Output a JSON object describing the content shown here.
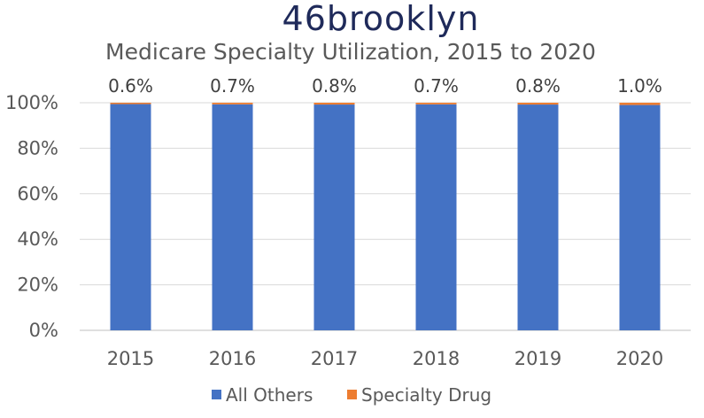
{
  "logo": {
    "text": "46brooklyn"
  },
  "chart_data": {
    "type": "bar",
    "stacked": "percent",
    "title": "Medicare Specialty Utilization, 2015 to 2020",
    "xlabel": "",
    "ylabel": "",
    "categories": [
      "2015",
      "2016",
      "2017",
      "2018",
      "2019",
      "2020"
    ],
    "series": [
      {
        "name": "All Others",
        "color": "#4472c4",
        "values": [
          99.4,
          99.3,
          99.2,
          99.3,
          99.2,
          99.0
        ]
      },
      {
        "name": "Specialty Drug",
        "color": "#ed7d31",
        "values": [
          0.6,
          0.7,
          0.8,
          0.7,
          0.8,
          1.0
        ]
      }
    ],
    "data_labels": [
      "0.6%",
      "0.7%",
      "0.8%",
      "0.7%",
      "0.8%",
      "1.0%"
    ],
    "ylim": [
      0,
      100
    ],
    "y_ticks": [
      "0%",
      "20%",
      "40%",
      "60%",
      "80%",
      "100%"
    ],
    "grid": true,
    "legend_position": "bottom"
  }
}
